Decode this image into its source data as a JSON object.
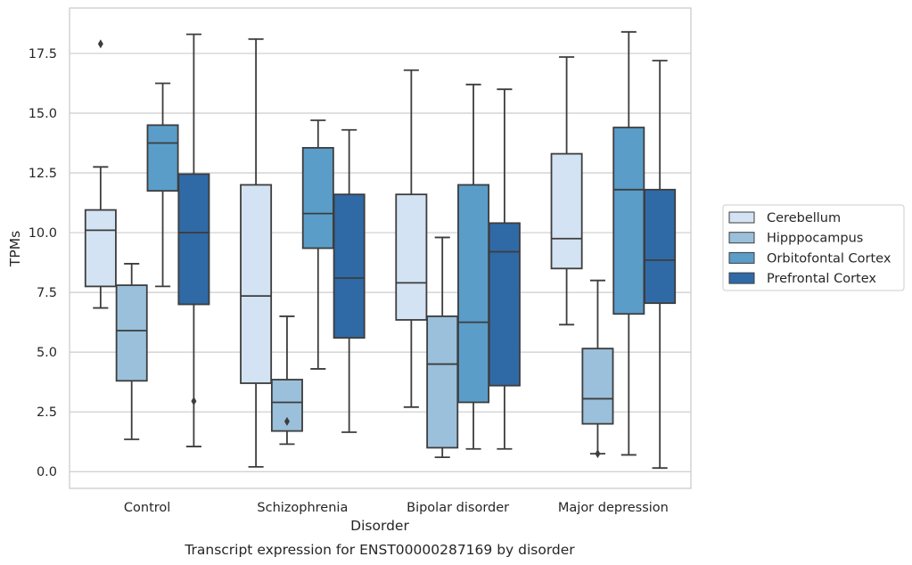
{
  "chart_data": {
    "type": "boxplot",
    "caption": "Transcript expression for ENST00000287169 by disorder",
    "xlabel": "Disorder",
    "ylabel": "TPMs",
    "ylim": [
      -0.7,
      19.4
    ],
    "yticks": [
      "0.0",
      "2.5",
      "5.0",
      "7.5",
      "10.0",
      "12.5",
      "15.0",
      "17.5"
    ],
    "categories": [
      "Control",
      "Schizophrenia",
      "Bipolar disorder",
      "Major depression"
    ],
    "grid": "horizontal",
    "legend_position": "right",
    "series": [
      {
        "name": "Cerebellum",
        "color": "#d3e3f3",
        "boxes": [
          {
            "whislo": 6.85,
            "q1": 7.75,
            "med": 10.1,
            "q3": 10.95,
            "whishi": 12.75,
            "fliers": [
              17.9
            ]
          },
          {
            "whislo": 0.2,
            "q1": 3.7,
            "med": 7.35,
            "q3": 12.0,
            "whishi": 18.1,
            "fliers": []
          },
          {
            "whislo": 2.7,
            "q1": 6.35,
            "med": 7.9,
            "q3": 11.6,
            "whishi": 16.8,
            "fliers": []
          },
          {
            "whislo": 6.15,
            "q1": 8.5,
            "med": 9.75,
            "q3": 13.3,
            "whishi": 17.35,
            "fliers": []
          }
        ]
      },
      {
        "name": "Hipppocampus",
        "color": "#9ac0db",
        "boxes": [
          {
            "whislo": 1.35,
            "q1": 3.8,
            "med": 5.9,
            "q3": 7.8,
            "whishi": 8.7,
            "fliers": []
          },
          {
            "whislo": 1.15,
            "q1": 1.7,
            "med": 2.9,
            "q3": 3.85,
            "whishi": 6.5,
            "fliers": [
              2.1
            ]
          },
          {
            "whislo": 0.6,
            "q1": 1.0,
            "med": 4.5,
            "q3": 6.5,
            "whishi": 9.8,
            "fliers": []
          },
          {
            "whislo": 0.75,
            "q1": 2.0,
            "med": 3.05,
            "q3": 5.15,
            "whishi": 8.0,
            "fliers": [
              0.75
            ]
          }
        ]
      },
      {
        "name": "Orbitofontal Cortex",
        "color": "#5a9dc9",
        "boxes": [
          {
            "whislo": 7.75,
            "q1": 11.75,
            "med": 13.75,
            "q3": 14.5,
            "whishi": 16.25,
            "fliers": []
          },
          {
            "whislo": 4.3,
            "q1": 9.35,
            "med": 10.8,
            "q3": 13.55,
            "whishi": 14.7,
            "fliers": []
          },
          {
            "whislo": 0.95,
            "q1": 2.9,
            "med": 6.25,
            "q3": 12.0,
            "whishi": 16.2,
            "fliers": []
          },
          {
            "whislo": 0.7,
            "q1": 6.6,
            "med": 11.8,
            "q3": 14.4,
            "whishi": 18.4,
            "fliers": []
          }
        ]
      },
      {
        "name": "Prefrontal Cortex",
        "color": "#2f6aa7",
        "boxes": [
          {
            "whislo": 1.05,
            "q1": 7.0,
            "med": 10.0,
            "q3": 12.45,
            "whishi": 18.3,
            "fliers": [
              2.95
            ]
          },
          {
            "whislo": 1.65,
            "q1": 5.6,
            "med": 8.1,
            "q3": 11.6,
            "whishi": 14.3,
            "fliers": []
          },
          {
            "whislo": 0.95,
            "q1": 3.6,
            "med": 9.2,
            "q3": 10.4,
            "whishi": 16.0,
            "fliers": []
          },
          {
            "whislo": 0.15,
            "q1": 7.05,
            "med": 8.85,
            "q3": 11.8,
            "whishi": 17.2,
            "fliers": []
          }
        ]
      }
    ]
  }
}
